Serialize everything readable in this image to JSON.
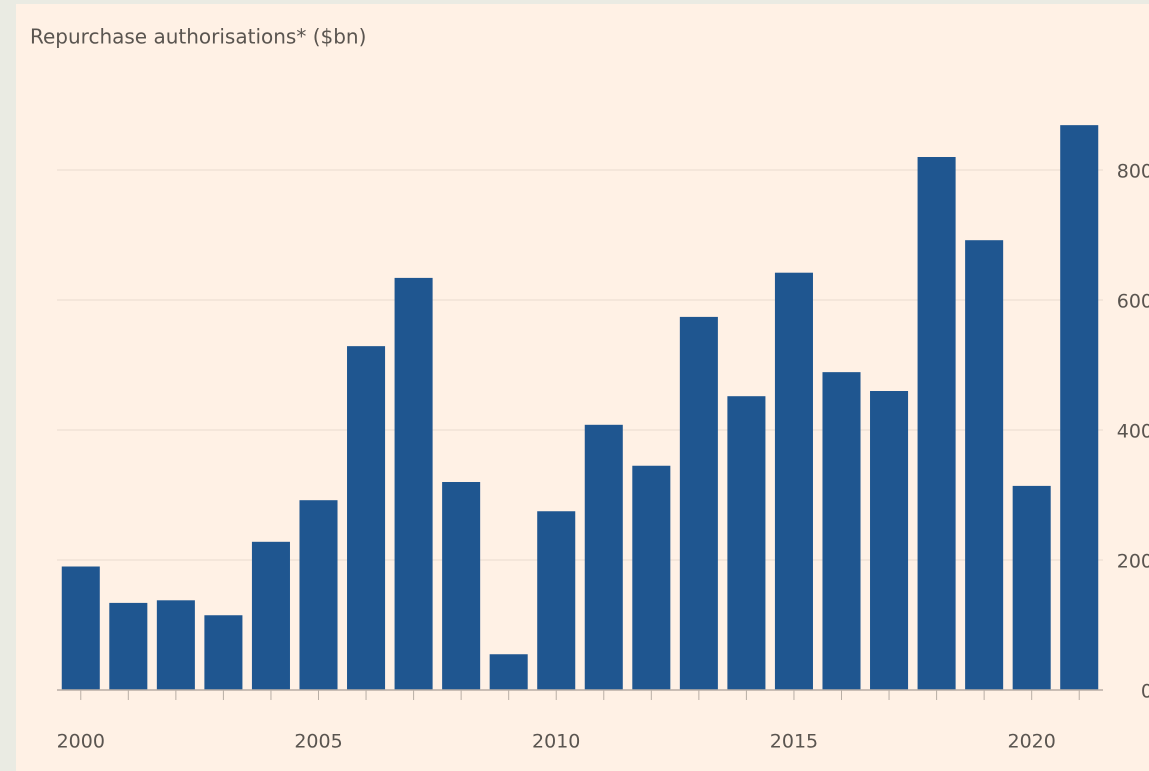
{
  "chart_data": {
    "type": "bar",
    "title": "Repurchase authorisations* ($bn)",
    "categories": [
      "2000",
      null,
      null,
      null,
      null,
      "2005",
      null,
      null,
      null,
      null,
      "2010",
      null,
      null,
      null,
      null,
      "2015",
      null,
      null,
      null,
      null,
      "2020",
      null
    ],
    "values": [
      190,
      134,
      138,
      115,
      228,
      292,
      529,
      634,
      320,
      55,
      275,
      408,
      345,
      574,
      452,
      642,
      489,
      460,
      820,
      692,
      314,
      869
    ],
    "color": "#1f5690",
    "ylim": [
      0,
      880
    ],
    "yticks": [
      0,
      200,
      400,
      600,
      800
    ],
    "grid": true
  }
}
